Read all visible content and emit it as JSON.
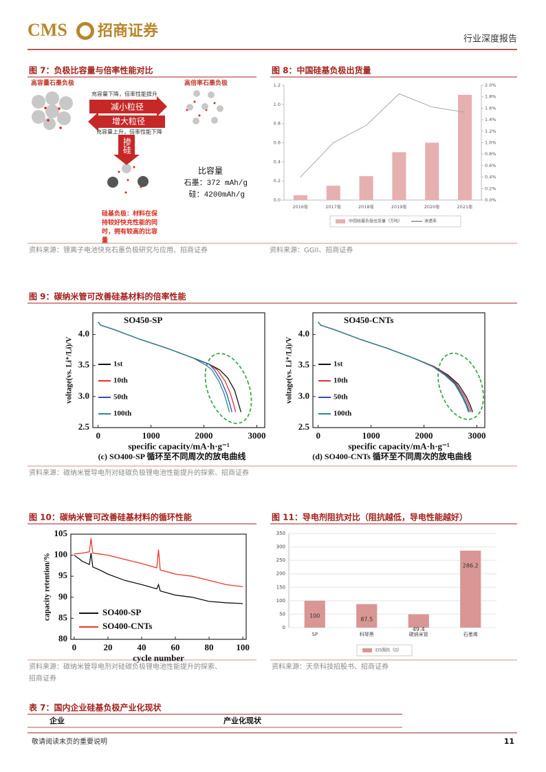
{
  "header": {
    "logo": "CMS",
    "company": "招商证券",
    "report_type": "行业深度报告"
  },
  "figure7": {
    "title": "图 7：负极比容量与倍率性能对比",
    "left_label": "高容量石墨负极",
    "right_label": "高倍率石墨负极",
    "top_note": "充容量下降，倍率性能提升",
    "arrow_right": "减小粒径",
    "arrow_left": "增大粒径",
    "bottom_note": "充容量上升，倍率性能下降",
    "arrow_down": "掺硅",
    "capacity_title": "比容量",
    "capacity_graphite": "石墨：372 mAh/g",
    "capacity_silicon": "硅：4200mAh/g",
    "note_lines": [
      "硅基负极：材料在保",
      "持较好快充性能的同",
      "时，拥有较高的比容",
      "量"
    ],
    "source": "资料来源：锂离子电池快充石墨负极研究与应用、招商证券"
  },
  "figure8": {
    "title": "图 8：中国硅基负极出货量",
    "source": "资料来源：GGII、招商证券"
  },
  "figure9": {
    "title": "图 9：碳纳米管可改善硅基材料的倍率性能",
    "source": "资料来源：碳纳米管导电剂对硅碳负极锂电池性能提升的探索、招商证券"
  },
  "figure10": {
    "title": "图 10：碳纳米管可改善硅基材料的循环性能",
    "source_lines": [
      "资料来源：碳纳米管导电剂对硅碳负极锂电池性能提升的探索、",
      "招商证券"
    ]
  },
  "figure11": {
    "title": "图 11：导电剂阻抗对比（阻抗越低，导电性能越好）",
    "source": "资料来源：天奈科技招股书、招商证券"
  },
  "table7": {
    "title": "表 7：国内企业硅基负极产业化现状",
    "columns": [
      "企业",
      "产业化现状"
    ]
  },
  "footer": {
    "note": "敬请阅读末页的重要说明",
    "page": "11"
  },
  "chart_data": [
    {
      "type": "combo",
      "categories": [
        "2016年",
        "2017年",
        "2018年",
        "2019年",
        "2020年",
        "2021年"
      ],
      "series": [
        {
          "name": "中国硅基负极出货量（万吨）",
          "color": "#e6b0b0",
          "values": [
            0.05,
            0.15,
            0.25,
            0.5,
            0.6,
            1.1
          ]
        },
        {
          "name": "渗透率",
          "color": "#a6a6a6",
          "values": [
            0.4,
            1.0,
            1.3,
            1.85,
            1.62,
            1.53
          ],
          "axis": "y2"
        }
      ],
      "ylim": [
        0,
        1.2
      ],
      "yticks": [
        {
          "value": 0,
          "label": "0.0"
        },
        0.2,
        0.4,
        0.6,
        0.8,
        {
          "value": 1,
          "label": "1.0"
        },
        1.2
      ],
      "y2lim": [
        0,
        2
      ],
      "y2ticks": [
        {
          "value": 0,
          "label": "0.0%"
        },
        {
          "value": 0.2,
          "label": "0.2%"
        },
        {
          "value": 0.4,
          "label": "0.4%"
        },
        {
          "value": 0.6,
          "label": "0.6%"
        },
        {
          "value": 0.8,
          "label": "0.8%"
        },
        {
          "value": 1,
          "label": "1.0%"
        },
        {
          "value": 1.2,
          "label": "1.2%"
        },
        {
          "value": 1.4,
          "label": "1.4%"
        },
        {
          "value": 1.6,
          "label": "1.6%"
        },
        {
          "value": 1.8,
          "label": "1.8%"
        },
        {
          "value": 2,
          "label": "2.0%"
        }
      ],
      "grid": false,
      "legend": "bottom"
    },
    {
      "type": "line",
      "title": "SO450-SP",
      "caption": "(c) SO400-SP 循环至不同周次的放电曲线",
      "x_label": "specific capacity/mA·h·g⁻¹",
      "y_label": "voltage(vs. Li⁺/Li)/V",
      "xlim": [
        -100,
        3150
      ],
      "ylim": [
        2.5,
        4.35
      ],
      "xticks": [
        0,
        1000,
        2000,
        3000
      ],
      "yticks": [
        2.5,
        {
          "value": 3,
          "label": "3.0"
        },
        3.5,
        {
          "value": 4,
          "label": "4.0"
        }
      ],
      "grid": false,
      "legend": "center left",
      "series": [
        {
          "name": "1st",
          "color": "#111111",
          "x": [
            0,
            50,
            300,
            800,
            1300,
            1800,
            2100,
            2300,
            2450,
            2580,
            2650,
            2700
          ],
          "values": [
            4.2,
            4.15,
            4.08,
            3.92,
            3.78,
            3.62,
            3.52,
            3.43,
            3.3,
            3.1,
            2.9,
            2.75
          ]
        },
        {
          "name": "10th",
          "color": "#e0302a",
          "x": [
            0,
            50,
            300,
            800,
            1300,
            1800,
            2100,
            2250,
            2400,
            2500,
            2560,
            2600
          ],
          "values": [
            4.2,
            4.15,
            4.08,
            3.92,
            3.78,
            3.62,
            3.52,
            3.43,
            3.25,
            3.05,
            2.88,
            2.75
          ]
        },
        {
          "name": "50th",
          "color": "#2e4fb0",
          "x": [
            0,
            50,
            300,
            800,
            1300,
            1800,
            2100,
            2200,
            2330,
            2430,
            2490,
            2530
          ],
          "values": [
            4.2,
            4.15,
            4.08,
            3.92,
            3.78,
            3.62,
            3.52,
            3.43,
            3.25,
            3.05,
            2.88,
            2.75
          ]
        },
        {
          "name": "100th",
          "color": "#2a8a8a",
          "x": [
            0,
            50,
            300,
            800,
            1300,
            1800,
            2050,
            2150,
            2280,
            2380,
            2440,
            2480
          ],
          "values": [
            4.2,
            4.15,
            4.08,
            3.92,
            3.78,
            3.62,
            3.5,
            3.43,
            3.25,
            3.05,
            2.88,
            2.75
          ]
        }
      ]
    },
    {
      "type": "line",
      "title": "SO450-CNTs",
      "caption": "(d) SO400-CNTs 循环至不同周次的放电曲线",
      "x_label": "specific capacity/mA·h·g⁻¹",
      "y_label": "voltage(vs. Li⁺/Li)/V",
      "xlim": [
        -100,
        3150
      ],
      "ylim": [
        2.5,
        4.35
      ],
      "xticks": [
        0,
        1000,
        2000,
        3000
      ],
      "yticks": [
        2.5,
        {
          "value": 3,
          "label": "3.0"
        },
        3.5,
        {
          "value": 4,
          "label": "4.0"
        }
      ],
      "grid": false,
      "legend": "center left",
      "series": [
        {
          "name": "1st",
          "color": "#111111",
          "x": [
            0,
            50,
            300,
            800,
            1300,
            1800,
            2200,
            2450,
            2650,
            2800,
            2880,
            2920
          ],
          "values": [
            4.2,
            4.15,
            4.08,
            3.92,
            3.78,
            3.62,
            3.48,
            3.35,
            3.2,
            3.0,
            2.85,
            2.75
          ]
        },
        {
          "name": "10th",
          "color": "#e0302a",
          "x": [
            0,
            50,
            300,
            800,
            1300,
            1800,
            2200,
            2430,
            2620,
            2770,
            2850,
            2890
          ],
          "values": [
            4.2,
            4.15,
            4.08,
            3.92,
            3.78,
            3.62,
            3.48,
            3.35,
            3.2,
            3.0,
            2.85,
            2.75
          ]
        },
        {
          "name": "50th",
          "color": "#2e4fb0",
          "x": [
            0,
            50,
            300,
            800,
            1300,
            1800,
            2180,
            2410,
            2600,
            2740,
            2820,
            2860
          ],
          "values": [
            4.2,
            4.15,
            4.08,
            3.92,
            3.78,
            3.62,
            3.48,
            3.35,
            3.2,
            3.0,
            2.85,
            2.75
          ]
        },
        {
          "name": "100th",
          "color": "#2a8a8a",
          "x": [
            0,
            50,
            300,
            800,
            1300,
            1800,
            2170,
            2390,
            2580,
            2720,
            2800,
            2840
          ],
          "values": [
            4.2,
            4.15,
            4.08,
            3.92,
            3.78,
            3.62,
            3.48,
            3.35,
            3.2,
            3.0,
            2.85,
            2.75
          ]
        }
      ]
    },
    {
      "type": "line",
      "x_label": "cycle number",
      "y_label": "capacity retention/%",
      "xlim": [
        -2,
        102
      ],
      "ylim": [
        80,
        105
      ],
      "xticks": [
        0,
        20,
        40,
        60,
        80,
        100
      ],
      "yticks": [
        80,
        85,
        90,
        95,
        100,
        105
      ],
      "grid": false,
      "legend": "lower left",
      "series": [
        {
          "name": "SO400-SP",
          "color": "#111111",
          "x": [
            0,
            5,
            9,
            10,
            11,
            15,
            20,
            30,
            40,
            49,
            50,
            51,
            60,
            70,
            80,
            90,
            100
          ],
          "values": [
            100,
            98.5,
            97.8,
            100.5,
            97.2,
            96.5,
            95.5,
            94,
            93,
            92,
            93,
            91.5,
            90.5,
            90,
            89,
            88.7,
            88.5
          ]
        },
        {
          "name": "SO400-CNTs",
          "color": "#e8372c",
          "x": [
            0,
            5,
            9,
            10,
            11,
            15,
            20,
            30,
            40,
            49,
            50,
            51,
            60,
            70,
            80,
            90,
            100
          ],
          "values": [
            100.3,
            100.5,
            100.8,
            104,
            100.5,
            100.3,
            100,
            99,
            98,
            97,
            101.3,
            96.5,
            95.5,
            95,
            94,
            93,
            92.5
          ]
        }
      ]
    },
    {
      "type": "bar",
      "categories": [
        "SP",
        "科琴黑",
        "碳纳米管",
        "石墨烯"
      ],
      "series": [
        {
          "name": "EIS阻抗（Ω）",
          "color": "#d99694",
          "values": [
            100,
            87.5,
            49.4,
            286.2
          ]
        }
      ],
      "ylim": [
        0,
        350
      ],
      "yticks": [
        0,
        50,
        100,
        150,
        200,
        250,
        300,
        350
      ],
      "grid": true,
      "legend": "bottom"
    }
  ]
}
